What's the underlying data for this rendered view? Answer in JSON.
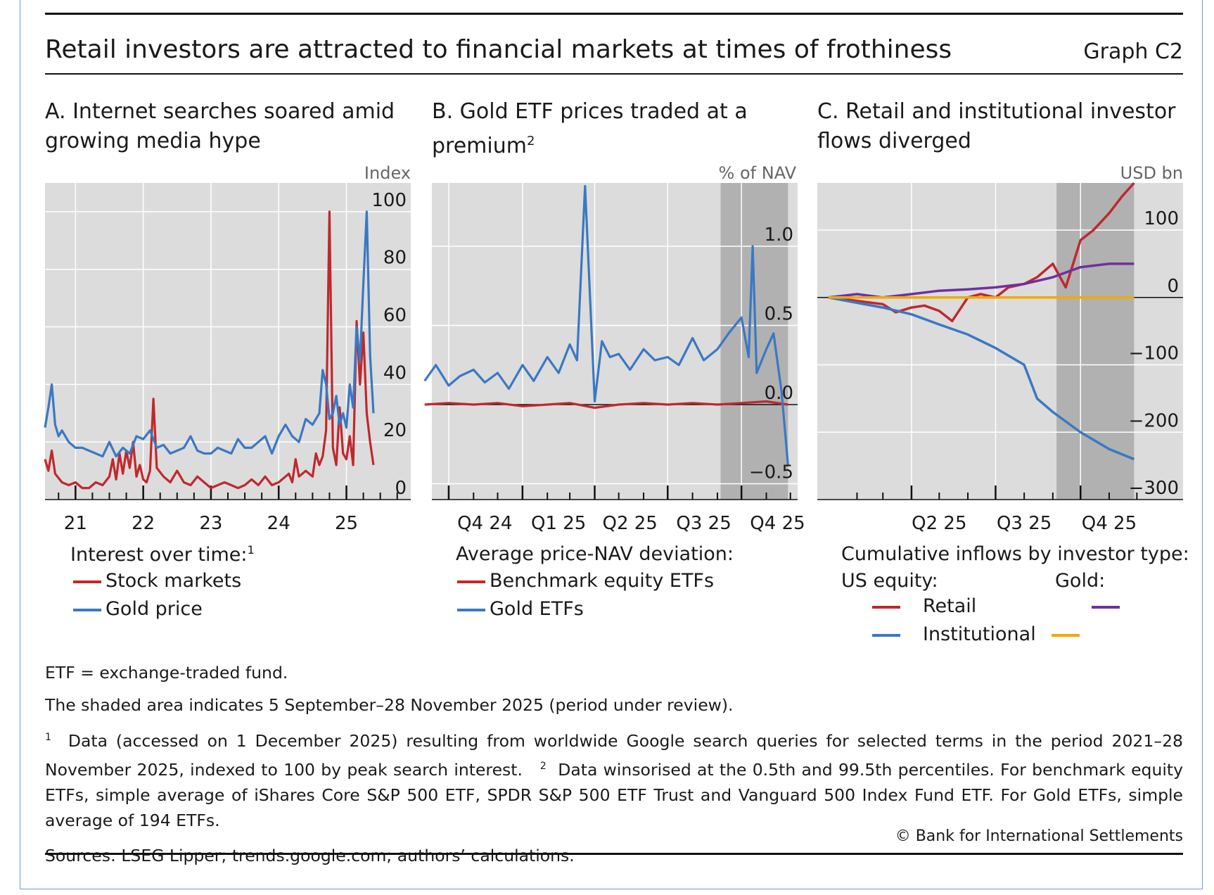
{
  "title": "Retail investors are attracted to financial markets at times of frothiness",
  "graph_id": "Graph C2",
  "colors": {
    "red": "#c0282d",
    "blue": "#3a78c3",
    "purple": "#7030a0",
    "orange": "#f2a900",
    "plot_bg": "#dcdcdc",
    "shade": "#a9a9a9"
  },
  "panels": {
    "a": {
      "title": "A. Internet searches soared amid growing media hype",
      "unit": "Index",
      "legend_title": "Interest over time:",
      "legend_title_sup": "1",
      "s1": "Stock markets",
      "s2": "Gold price"
    },
    "b": {
      "title": "B. Gold ETF prices traded at a premium",
      "title_sup": "2",
      "unit": "% of NAV",
      "legend_title": "Average price-NAV deviation:",
      "s1": "Benchmark equity ETFs",
      "s2": "Gold ETFs"
    },
    "c": {
      "title": "C. Retail and institutional investor flows diverged",
      "unit": "USD bn",
      "legend_title": "Cumulative inflows by investor type:",
      "col1": "US equity:",
      "col2": "Gold:",
      "r1": "Retail",
      "r2": "Institutional"
    }
  },
  "notes": {
    "n1": "ETF = exchange-traded fund.",
    "n2": "The shaded area indicates 5 September–28 November 2025 (period under review).",
    "n3a": "Data (accessed on 1 December 2025) resulting from worldwide Google search queries for selected terms in the period 2021–28 November 2025, indexed to 100 by peak search interest.",
    "n3b": "Data winsorised at the 0.5th and 99.5th percentiles. For benchmark equity ETFs, simple average of iShares Core S&P 500 ETF, SPDR S&P 500 ETF Trust and Vanguard 500 Index Fund ETF. For Gold ETFs, simple average of 194 ETFs.",
    "sources": "Sources: LSEG Lipper; trends.google.com; authors’ calculations.",
    "copyright": "© Bank for International Settlements"
  },
  "chart_data": [
    {
      "panel": "A",
      "type": "line",
      "ylim": [
        0,
        110
      ],
      "yticks": [
        0,
        20,
        40,
        60,
        80,
        100
      ],
      "xlim": [
        2020.55,
        2025.95
      ],
      "xticks": [
        {
          "label": "21",
          "x": 2021.0
        },
        {
          "label": "22",
          "x": 2022.0
        },
        {
          "label": "23",
          "x": 2023.0
        },
        {
          "label": "24",
          "x": 2024.0
        },
        {
          "label": "25",
          "x": 2025.0
        }
      ],
      "series": [
        {
          "name": "Stock markets",
          "color": "#c0282d",
          "x": [
            2020.55,
            2020.6,
            2020.65,
            2020.7,
            2020.8,
            2020.9,
            2021.0,
            2021.1,
            2021.2,
            2021.3,
            2021.4,
            2021.5,
            2021.55,
            2021.6,
            2021.65,
            2021.7,
            2021.75,
            2021.8,
            2021.85,
            2021.9,
            2021.95,
            2022.0,
            2022.05,
            2022.1,
            2022.15,
            2022.2,
            2022.3,
            2022.4,
            2022.5,
            2022.6,
            2022.7,
            2022.8,
            2022.9,
            2023.0,
            2023.1,
            2023.2,
            2023.3,
            2023.4,
            2023.5,
            2023.6,
            2023.7,
            2023.8,
            2023.9,
            2024.0,
            2024.1,
            2024.15,
            2024.2,
            2024.25,
            2024.3,
            2024.4,
            2024.5,
            2024.55,
            2024.6,
            2024.65,
            2024.7,
            2024.75,
            2024.8,
            2024.85,
            2024.9,
            2024.95,
            2025.0,
            2025.05,
            2025.1,
            2025.15,
            2025.2,
            2025.25,
            2025.3,
            2025.35,
            2025.4
          ],
          "y": [
            14,
            10,
            17,
            9,
            6,
            5,
            6,
            4,
            4,
            6,
            5,
            8,
            14,
            7,
            16,
            9,
            17,
            11,
            20,
            8,
            12,
            7,
            6,
            10,
            35,
            11,
            8,
            6,
            10,
            6,
            5,
            8,
            6,
            4,
            5,
            6,
            5,
            4,
            5,
            7,
            5,
            8,
            5,
            6,
            8,
            9,
            6,
            14,
            8,
            10,
            8,
            16,
            12,
            15,
            24,
            100,
            18,
            12,
            32,
            16,
            14,
            22,
            12,
            62,
            40,
            58,
            30,
            20,
            12
          ]
        },
        {
          "name": "Gold price",
          "color": "#3a78c3",
          "x": [
            2020.55,
            2020.6,
            2020.65,
            2020.7,
            2020.75,
            2020.8,
            2020.9,
            2021.0,
            2021.1,
            2021.2,
            2021.3,
            2021.4,
            2021.5,
            2021.6,
            2021.7,
            2021.8,
            2021.9,
            2022.0,
            2022.1,
            2022.2,
            2022.3,
            2022.4,
            2022.5,
            2022.6,
            2022.7,
            2022.8,
            2022.9,
            2023.0,
            2023.1,
            2023.2,
            2023.3,
            2023.4,
            2023.5,
            2023.6,
            2023.7,
            2023.8,
            2023.9,
            2024.0,
            2024.1,
            2024.2,
            2024.3,
            2024.4,
            2024.5,
            2024.6,
            2024.65,
            2024.7,
            2024.75,
            2024.8,
            2024.85,
            2024.9,
            2024.95,
            2025.0,
            2025.05,
            2025.1,
            2025.15,
            2025.2,
            2025.25,
            2025.3,
            2025.35,
            2025.4
          ],
          "y": [
            25,
            32,
            40,
            26,
            22,
            24,
            20,
            18,
            18,
            17,
            16,
            15,
            20,
            15,
            18,
            16,
            22,
            21,
            24,
            18,
            19,
            16,
            17,
            18,
            22,
            17,
            16,
            16,
            18,
            17,
            16,
            21,
            18,
            18,
            20,
            22,
            16,
            22,
            26,
            22,
            20,
            28,
            26,
            30,
            45,
            40,
            28,
            30,
            36,
            26,
            30,
            25,
            40,
            32,
            60,
            48,
            75,
            100,
            50,
            30
          ]
        }
      ]
    },
    {
      "panel": "B",
      "type": "line",
      "ylim": [
        -0.6,
        1.4
      ],
      "yticks": [
        -0.5,
        0.0,
        0.5,
        1.0
      ],
      "shaded": [
        "2025-09-05",
        "2025-11-28"
      ],
      "xticks": [
        "Q4 24",
        "Q1 25",
        "Q2 25",
        "Q3 25",
        "Q4 25"
      ],
      "series": [
        {
          "name": "Benchmark equity ETFs",
          "color": "#c0282d",
          "x": [
            "2024-09-01",
            "2024-10-01",
            "2024-11-01",
            "2024-12-01",
            "2025-01-01",
            "2025-02-01",
            "2025-03-01",
            "2025-04-01",
            "2025-05-01",
            "2025-06-01",
            "2025-07-01",
            "2025-08-01",
            "2025-09-01",
            "2025-10-01",
            "2025-11-01",
            "2025-11-28"
          ],
          "y": [
            0.0,
            0.01,
            0.0,
            0.01,
            -0.01,
            0.0,
            0.01,
            -0.02,
            0.0,
            0.01,
            0.0,
            0.01,
            0.0,
            0.01,
            0.02,
            0.0
          ]
        },
        {
          "name": "Gold ETFs",
          "color": "#3a78c3",
          "x": [
            "2024-09-01",
            "2024-09-15",
            "2024-10-01",
            "2024-10-15",
            "2024-11-01",
            "2024-11-15",
            "2024-12-01",
            "2024-12-15",
            "2025-01-01",
            "2025-01-15",
            "2025-02-01",
            "2025-02-15",
            "2025-03-01",
            "2025-03-10",
            "2025-03-20",
            "2025-04-01",
            "2025-04-10",
            "2025-04-20",
            "2025-05-01",
            "2025-05-15",
            "2025-06-01",
            "2025-06-15",
            "2025-07-01",
            "2025-07-15",
            "2025-08-01",
            "2025-08-15",
            "2025-09-01",
            "2025-09-15",
            "2025-10-01",
            "2025-10-10",
            "2025-10-15",
            "2025-10-20",
            "2025-11-01",
            "2025-11-10",
            "2025-11-20",
            "2025-11-28"
          ],
          "y": [
            0.15,
            0.25,
            0.12,
            0.18,
            0.22,
            0.14,
            0.2,
            0.1,
            0.25,
            0.15,
            0.3,
            0.2,
            0.38,
            0.28,
            1.38,
            0.02,
            0.4,
            0.3,
            0.32,
            0.22,
            0.35,
            0.28,
            0.3,
            0.25,
            0.42,
            0.28,
            0.35,
            0.45,
            0.55,
            0.3,
            1.0,
            0.2,
            0.35,
            0.45,
            0.08,
            -0.38
          ]
        }
      ]
    },
    {
      "panel": "C",
      "type": "line",
      "ylim": [
        -300,
        170
      ],
      "yticks": [
        -300,
        -200,
        -100,
        0,
        100
      ],
      "shaded": [
        "2025-09-05",
        "2025-11-28"
      ],
      "xticks": [
        "Q2 25",
        "Q3 25",
        "Q4 25"
      ],
      "series": [
        {
          "name": "Retail",
          "group": "US equity",
          "color": "#c0282d",
          "x": [
            "2025-01-01",
            "2025-02-01",
            "2025-03-01",
            "2025-03-15",
            "2025-04-01",
            "2025-04-15",
            "2025-05-01",
            "2025-05-15",
            "2025-06-01",
            "2025-06-15",
            "2025-07-01",
            "2025-07-15",
            "2025-08-01",
            "2025-08-15",
            "2025-09-01",
            "2025-09-15",
            "2025-10-01",
            "2025-10-15",
            "2025-11-01",
            "2025-11-15",
            "2025-11-28"
          ],
          "y": [
            0,
            -5,
            -10,
            -22,
            -15,
            -12,
            -20,
            -35,
            0,
            5,
            0,
            15,
            20,
            30,
            50,
            15,
            85,
            100,
            125,
            150,
            170
          ]
        },
        {
          "name": "Institutional",
          "group": "US equity",
          "color": "#3a78c3",
          "x": [
            "2025-01-01",
            "2025-02-01",
            "2025-03-01",
            "2025-04-01",
            "2025-05-01",
            "2025-06-01",
            "2025-07-01",
            "2025-08-01",
            "2025-08-15",
            "2025-09-01",
            "2025-10-01",
            "2025-11-01",
            "2025-11-28"
          ],
          "y": [
            0,
            -8,
            -15,
            -25,
            -40,
            -55,
            -75,
            -100,
            -150,
            -170,
            -200,
            -225,
            -240
          ]
        },
        {
          "name": "Gold",
          "group": "Gold",
          "color": "#7030a0",
          "x": [
            "2025-01-01",
            "2025-02-01",
            "2025-03-01",
            "2025-04-01",
            "2025-05-01",
            "2025-06-01",
            "2025-07-01",
            "2025-08-01",
            "2025-09-01",
            "2025-10-01",
            "2025-11-01",
            "2025-11-28"
          ],
          "y": [
            0,
            5,
            0,
            5,
            10,
            12,
            15,
            20,
            30,
            45,
            50,
            50
          ]
        },
        {
          "name": "Gold (institutional)",
          "group": "Gold",
          "color": "#f2a900",
          "x": [
            "2025-01-01",
            "2025-11-28"
          ],
          "y": [
            0,
            0
          ]
        }
      ]
    }
  ]
}
